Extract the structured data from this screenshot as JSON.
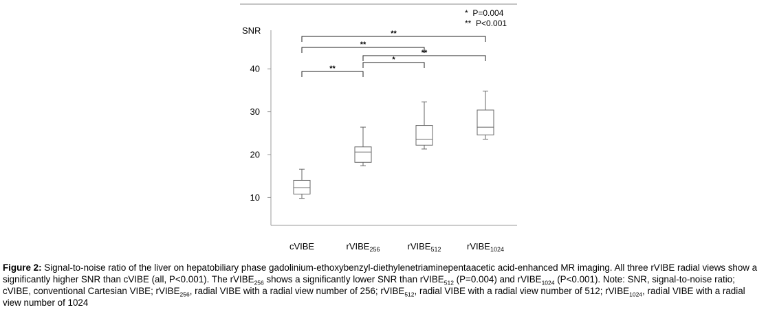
{
  "chart_data": {
    "type": "box",
    "ylabel": "SNR",
    "yticks": [
      10,
      20,
      30,
      40
    ],
    "ylim": [
      3.5,
      49
    ],
    "categories": [
      {
        "base": "cVIBE",
        "sub": ""
      },
      {
        "base": "rVIBE",
        "sub": "256"
      },
      {
        "base": "rVIBE",
        "sub": "512"
      },
      {
        "base": "rVIBE",
        "sub": "1024"
      }
    ],
    "boxes": [
      {
        "min": 9.8,
        "q1": 10.8,
        "median": 12.3,
        "q3": 14.0,
        "max": 16.6
      },
      {
        "min": 17.4,
        "q1": 18.2,
        "median": 20.6,
        "q3": 21.8,
        "max": 26.4
      },
      {
        "min": 21.3,
        "q1": 22.2,
        "median": 23.6,
        "q3": 26.8,
        "max": 32.3
      },
      {
        "min": 23.6,
        "q1": 24.6,
        "median": 26.4,
        "q3": 30.4,
        "max": 34.8
      }
    ],
    "significance": [
      {
        "from": 0,
        "to": 1,
        "label": "**"
      },
      {
        "from": 1,
        "to": 2,
        "label": "*"
      },
      {
        "from": 1,
        "to": 3,
        "label": "**"
      },
      {
        "from": 0,
        "to": 2,
        "label": "**"
      },
      {
        "from": 0,
        "to": 3,
        "label": "**"
      }
    ],
    "legend": [
      "*  P=0.004",
      "**  P<0.001"
    ]
  },
  "caption": {
    "figure_label": "Figure 2:",
    "seg1": " Signal-to-noise ratio of the liver on hepatobiliary phase gadolinium-ethoxybenzyl-diethylenetriaminepentaacetic acid-enhanced MR imaging. All three rVIBE radial views show a significantly higher SNR than cVIBE (all, P<0.001). The rVIBE",
    "sub1": "256",
    "seg2": " shows a significantly lower SNR than rVIBE",
    "sub2": "512",
    "seg3": " (P=0.004) and rVIBE",
    "sub3": "1024",
    "seg4": " (P<0.001). Note: SNR, signal-to-noise ratio; cVIBE, conventional Cartesian VIBE; rVIBE",
    "sub4": "256",
    "seg5": ", radial VIBE with a radial view number of 256; rVIBE",
    "sub5": "512",
    "seg6": ", radial VIBE with a radial view number of 512; rVIBE",
    "sub6": "1024",
    "seg7": ", radial VIBE with a radial view number of 1024"
  }
}
